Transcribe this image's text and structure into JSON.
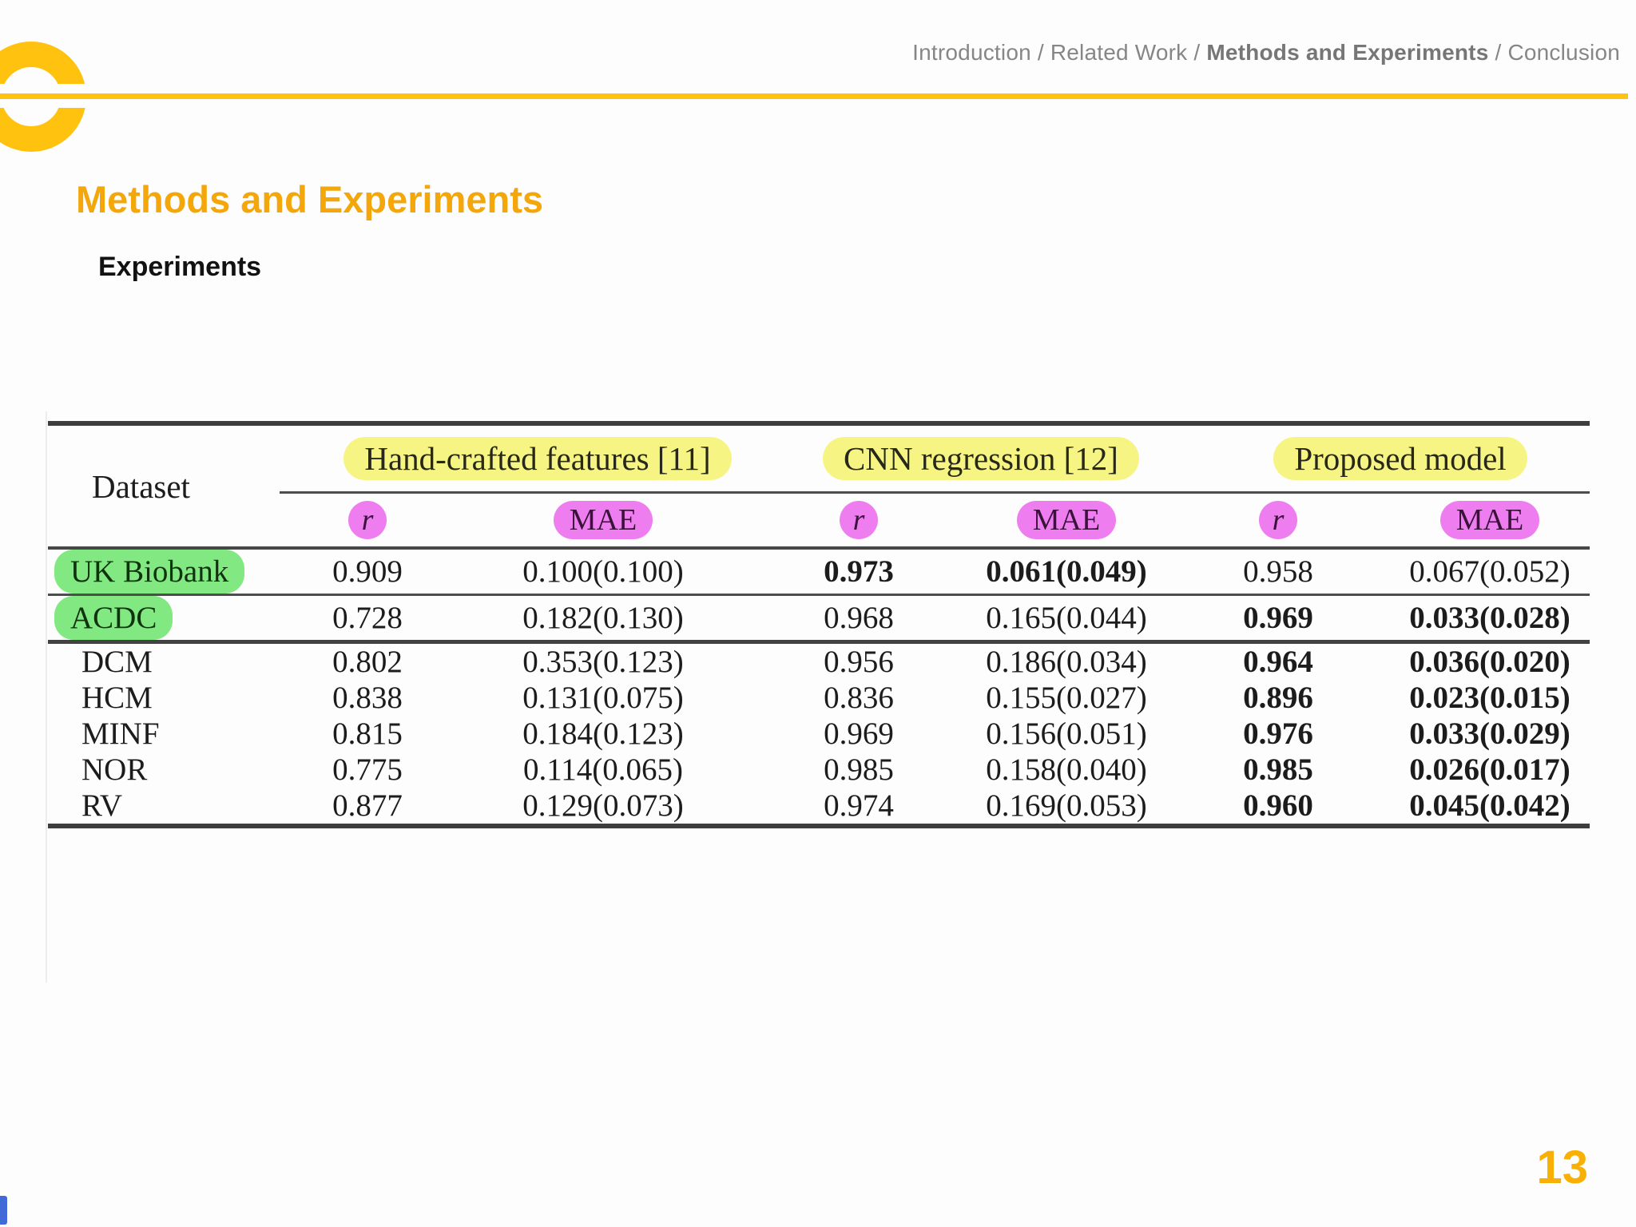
{
  "nav": {
    "separator": "/",
    "items": [
      {
        "label": "Introduction",
        "bold": false
      },
      {
        "label": "Related Work",
        "bold": false
      },
      {
        "label": "Methods and Experiments",
        "bold": true
      },
      {
        "label": "Conclusion",
        "bold": false
      }
    ]
  },
  "title": "Methods and Experiments",
  "subtitle": "Experiments",
  "page_number": "13",
  "colors": {
    "accent_yellow": "#FFC20E",
    "title_orange": "#F4A70B",
    "highlight_yellow": "#f6f584",
    "highlight_pink": "#ee7ef0",
    "highlight_green": "#82e882",
    "rule_gray": "#3d3d3d",
    "nav_gray": "#868686",
    "corner_blue": "#3f6ad8"
  },
  "table": {
    "dataset_header": "Dataset",
    "groups": [
      {
        "label": "Hand-crafted features [11]"
      },
      {
        "label": "CNN regression [12]"
      },
      {
        "label": "Proposed model"
      }
    ],
    "subheaders": [
      "r",
      "MAE",
      "r",
      "MAE",
      "r",
      "MAE"
    ],
    "rows": [
      {
        "dataset": "UK Biobank",
        "green": true,
        "rule_after": "thin",
        "values": [
          "0.909",
          "0.100(0.100)",
          "0.973",
          "0.061(0.049)",
          "0.958",
          "0.067(0.052)"
        ],
        "bold": [
          false,
          false,
          true,
          true,
          false,
          false
        ]
      },
      {
        "dataset": "ACDC",
        "green": true,
        "rule_after": "thick",
        "values": [
          "0.728",
          "0.182(0.130)",
          "0.968",
          "0.165(0.044)",
          "0.969",
          "0.033(0.028)"
        ],
        "bold": [
          false,
          false,
          false,
          false,
          true,
          true
        ]
      },
      {
        "dataset": "DCM",
        "green": false,
        "rule_after": "none",
        "values": [
          "0.802",
          "0.353(0.123)",
          "0.956",
          "0.186(0.034)",
          "0.964",
          "0.036(0.020)"
        ],
        "bold": [
          false,
          false,
          false,
          false,
          true,
          true
        ]
      },
      {
        "dataset": "HCM",
        "green": false,
        "rule_after": "none",
        "values": [
          "0.838",
          "0.131(0.075)",
          "0.836",
          "0.155(0.027)",
          "0.896",
          "0.023(0.015)"
        ],
        "bold": [
          false,
          false,
          false,
          false,
          true,
          true
        ]
      },
      {
        "dataset": "MINF",
        "green": false,
        "rule_after": "none",
        "values": [
          "0.815",
          "0.184(0.123)",
          "0.969",
          "0.156(0.051)",
          "0.976",
          "0.033(0.029)"
        ],
        "bold": [
          false,
          false,
          false,
          false,
          true,
          true
        ]
      },
      {
        "dataset": "NOR",
        "green": false,
        "rule_after": "none",
        "values": [
          "0.775",
          "0.114(0.065)",
          "0.985",
          "0.158(0.040)",
          "0.985",
          "0.026(0.017)"
        ],
        "bold": [
          false,
          false,
          false,
          false,
          true,
          true
        ]
      },
      {
        "dataset": "RV",
        "green": false,
        "rule_after": "none",
        "values": [
          "0.877",
          "0.129(0.073)",
          "0.974",
          "0.169(0.053)",
          "0.960",
          "0.045(0.042)"
        ],
        "bold": [
          false,
          false,
          false,
          false,
          true,
          true
        ]
      }
    ]
  }
}
